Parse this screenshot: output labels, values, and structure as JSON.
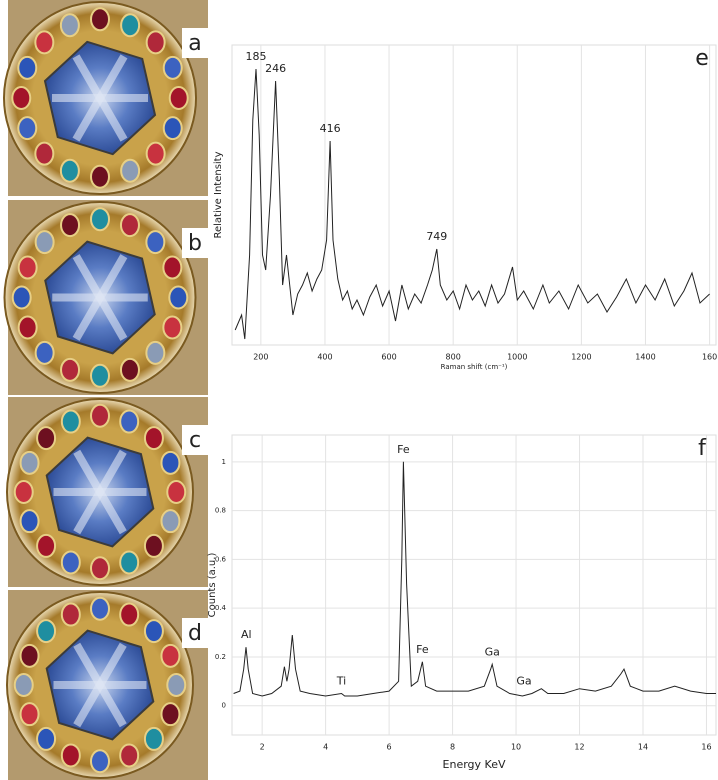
{
  "panels": [
    {
      "label": "a"
    },
    {
      "label": "b"
    },
    {
      "label": "c"
    },
    {
      "label": "d"
    }
  ],
  "chart_data": [
    {
      "type": "line",
      "panel_label": "e",
      "color": "#222222",
      "grid": true,
      "ylabel": "Relative Intensity",
      "xlabel": "Raman shift (cm⁻¹)",
      "xlim": [
        110,
        1620
      ],
      "ylim": [
        0,
        1.0
      ],
      "xticks": [
        200,
        400,
        600,
        800,
        1000,
        1200,
        1400,
        {
          "value": 1600,
          "label": "160"
        }
      ],
      "x": [
        120,
        140,
        150,
        165,
        175,
        185,
        195,
        205,
        215,
        230,
        246,
        258,
        268,
        280,
        290,
        300,
        315,
        330,
        345,
        360,
        375,
        390,
        405,
        416,
        425,
        440,
        455,
        470,
        485,
        500,
        520,
        540,
        560,
        580,
        600,
        620,
        640,
        660,
        680,
        700,
        720,
        735,
        749,
        760,
        780,
        800,
        820,
        840,
        860,
        880,
        900,
        920,
        940,
        960,
        985,
        1000,
        1020,
        1050,
        1080,
        1100,
        1130,
        1160,
        1190,
        1220,
        1250,
        1280,
        1310,
        1340,
        1370,
        1400,
        1430,
        1460,
        1490,
        1520,
        1545,
        1570,
        1600
      ],
      "values": [
        0.05,
        0.1,
        0.02,
        0.3,
        0.75,
        0.92,
        0.7,
        0.3,
        0.25,
        0.5,
        0.88,
        0.55,
        0.2,
        0.3,
        0.2,
        0.1,
        0.17,
        0.2,
        0.24,
        0.18,
        0.22,
        0.25,
        0.35,
        0.68,
        0.35,
        0.22,
        0.15,
        0.18,
        0.12,
        0.15,
        0.1,
        0.16,
        0.2,
        0.13,
        0.18,
        0.08,
        0.2,
        0.12,
        0.17,
        0.14,
        0.2,
        0.25,
        0.32,
        0.2,
        0.15,
        0.18,
        0.12,
        0.2,
        0.15,
        0.18,
        0.13,
        0.2,
        0.14,
        0.17,
        0.26,
        0.15,
        0.18,
        0.12,
        0.2,
        0.14,
        0.18,
        0.12,
        0.2,
        0.14,
        0.17,
        0.11,
        0.16,
        0.22,
        0.14,
        0.2,
        0.15,
        0.22,
        0.13,
        0.18,
        0.24,
        0.14,
        0.17
      ],
      "annotations": [
        {
          "text": "185",
          "x": 185,
          "y": 0.92
        },
        {
          "text": "246",
          "x": 246,
          "y": 0.88
        },
        {
          "text": "416",
          "x": 416,
          "y": 0.68
        },
        {
          "text": "749",
          "x": 749,
          "y": 0.32
        }
      ]
    },
    {
      "type": "line",
      "panel_label": "f",
      "color": "#222222",
      "grid": true,
      "ylabel": "Counts (a.u.)",
      "xlabel": "Energy KeV",
      "xlim": [
        1.05,
        16.3
      ],
      "ylim": [
        -0.12,
        1.11
      ],
      "xticks": [
        2,
        4,
        6,
        8,
        10,
        12,
        14,
        16
      ],
      "yticks": [
        0,
        0.2,
        0.4,
        0.6,
        0.8,
        1
      ],
      "x": [
        1.1,
        1.3,
        1.42,
        1.49,
        1.56,
        1.7,
        2.0,
        2.3,
        2.6,
        2.7,
        2.78,
        2.85,
        2.95,
        3.05,
        3.2,
        3.5,
        4.0,
        4.5,
        4.6,
        5.0,
        5.5,
        6.0,
        6.3,
        6.4,
        6.45,
        6.55,
        6.7,
        6.9,
        7.05,
        7.15,
        7.5,
        8.0,
        8.5,
        9.0,
        9.2,
        9.25,
        9.4,
        9.8,
        10.2,
        10.5,
        10.8,
        11.0,
        11.5,
        12.0,
        12.5,
        13.0,
        13.3,
        13.4,
        13.6,
        14.0,
        14.5,
        15.0,
        15.5,
        16.0,
        16.3
      ],
      "values": [
        0.05,
        0.06,
        0.15,
        0.24,
        0.15,
        0.05,
        0.04,
        0.05,
        0.08,
        0.16,
        0.1,
        0.15,
        0.29,
        0.15,
        0.06,
        0.05,
        0.04,
        0.05,
        0.04,
        0.04,
        0.05,
        0.06,
        0.1,
        0.6,
        1.0,
        0.5,
        0.08,
        0.1,
        0.18,
        0.08,
        0.06,
        0.06,
        0.06,
        0.08,
        0.15,
        0.17,
        0.08,
        0.05,
        0.04,
        0.05,
        0.07,
        0.05,
        0.05,
        0.07,
        0.06,
        0.08,
        0.13,
        0.15,
        0.08,
        0.06,
        0.06,
        0.08,
        0.06,
        0.05,
        0.05
      ],
      "annotations": [
        {
          "text": "Al",
          "x": 1.5,
          "y": 0.24
        },
        {
          "text": "Ti",
          "x": 4.5,
          "y": 0.05
        },
        {
          "text": "Fe",
          "x": 6.45,
          "y": 1.0
        },
        {
          "text": "Fe",
          "x": 7.05,
          "y": 0.18
        },
        {
          "text": "Ga",
          "x": 9.25,
          "y": 0.17
        },
        {
          "text": "Ga",
          "x": 10.25,
          "y": 0.05
        }
      ]
    }
  ]
}
